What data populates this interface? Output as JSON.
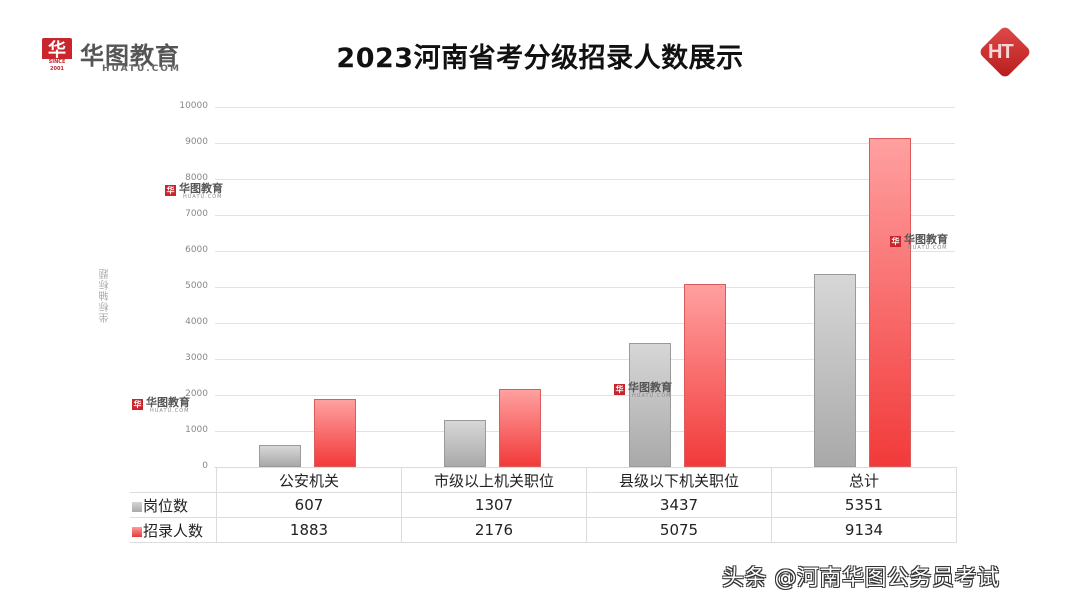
{
  "title": "2023河南省考分级招录人数展示",
  "logo_left": {
    "badge": "华",
    "since": "SINCE 2001",
    "name_cn": "华图教育",
    "name_en": "HUATU.COM"
  },
  "logo_right": {
    "text": "HT"
  },
  "watermark": {
    "name_cn": "华图教育",
    "name_en": "HUATU.COM",
    "badge": "华"
  },
  "footer": "头条 @河南华图公务员考试",
  "colors": {
    "series_gray": "#b5b5b5",
    "series_red": "#f55a5a",
    "brand_red": "#c9252d"
  },
  "chart_data": {
    "type": "bar",
    "title": "2023河南省考分级招录人数展示",
    "xlabel": "",
    "ylabel": "坐标轴标题",
    "ylim": [
      0,
      10000
    ],
    "yticks": [
      "0",
      "1000",
      "2000",
      "3000",
      "4000",
      "5000",
      "6000",
      "7000",
      "8000",
      "9000",
      "10000"
    ],
    "grid": true,
    "legend_position": "data-table",
    "categories": [
      "公安机关",
      "市级以上机关职位",
      "县级以下机关职位",
      "总计"
    ],
    "series": [
      {
        "name": "岗位数",
        "values": [
          607,
          1307,
          3437,
          5351
        ]
      },
      {
        "name": "招录人数",
        "values": [
          1883,
          2176,
          5075,
          9134
        ]
      }
    ]
  },
  "table": {
    "rows": [
      {
        "label": "岗位数",
        "values": [
          "607",
          "1307",
          "3437",
          "5351"
        ]
      },
      {
        "label": "招录人数",
        "values": [
          "1883",
          "2176",
          "5075",
          "9134"
        ]
      }
    ]
  }
}
